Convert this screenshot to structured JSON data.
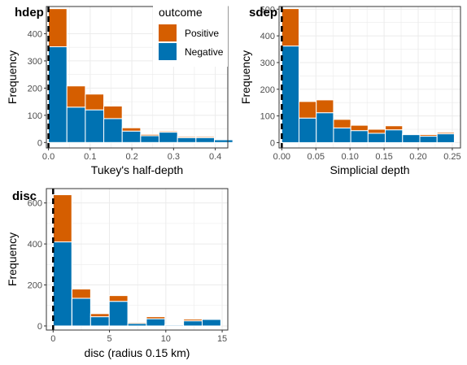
{
  "colors": {
    "positive": "#D55E00",
    "negative": "#0072B2",
    "grid": "#ebebeb",
    "border": "#333333"
  },
  "legend": {
    "title": "outcome",
    "items": [
      {
        "label": "Positive",
        "color": "#D55E00"
      },
      {
        "label": "Negative",
        "color": "#0072B2"
      }
    ]
  },
  "chart_data": [
    {
      "id": "hdep",
      "type": "bar",
      "stacked": true,
      "title": "hdep",
      "xlabel": "Tukey's half-depth",
      "ylabel": "Frequency",
      "xlim": [
        -0.005,
        0.43
      ],
      "ylim": [
        -20,
        500
      ],
      "xticks": [
        0.0,
        0.1,
        0.2,
        0.3,
        0.4
      ],
      "xtick_labels": [
        "0.0",
        "0.1",
        "0.2",
        "0.3",
        "0.4"
      ],
      "yticks": [
        0,
        100,
        200,
        300,
        400
      ],
      "ytick_labels": [
        "0",
        "100",
        "200",
        "300",
        "400"
      ],
      "bin_width": 0.0442,
      "dashed_vline": 0.0,
      "bins": [
        0.0221,
        0.0663,
        0.1105,
        0.1547,
        0.1989,
        0.2431,
        0.2873,
        0.3315,
        0.3757,
        0.4199
      ],
      "series": [
        {
          "name": "Negative",
          "values": [
            352,
            130,
            120,
            88,
            42,
            25,
            38,
            18,
            18,
            10
          ]
        },
        {
          "name": "Positive",
          "values": [
            140,
            78,
            58,
            46,
            12,
            5,
            4,
            4,
            4,
            3
          ]
        }
      ],
      "grid": true
    },
    {
      "id": "sdep",
      "type": "bar",
      "stacked": true,
      "title": "sdep",
      "xlabel": "Simplicial depth",
      "ylabel": "Frequency",
      "xlim": [
        -0.004,
        0.262
      ],
      "ylim": [
        -20,
        510
      ],
      "xticks": [
        0.0,
        0.05,
        0.1,
        0.15,
        0.2,
        0.25
      ],
      "xtick_labels": [
        "0.00",
        "0.05",
        "0.10",
        "0.15",
        "0.20",
        "0.25"
      ],
      "yticks": [
        0,
        100,
        200,
        300,
        400,
        500
      ],
      "ytick_labels": [
        "0",
        "100",
        "200",
        "300",
        "400",
        "500"
      ],
      "bin_width": 0.0253,
      "dashed_vline": 0.0,
      "bins": [
        0.0126,
        0.0379,
        0.0632,
        0.0885,
        0.1138,
        0.1391,
        0.1644,
        0.1897,
        0.215,
        0.2403
      ],
      "series": [
        {
          "name": "Negative",
          "values": [
            362,
            92,
            112,
            55,
            45,
            35,
            48,
            30,
            24,
            33
          ]
        },
        {
          "name": "Positive",
          "values": [
            140,
            62,
            48,
            32,
            20,
            15,
            15,
            3,
            6,
            5
          ]
        }
      ],
      "grid": true
    },
    {
      "id": "disc",
      "type": "bar",
      "stacked": true,
      "title": "disc",
      "xlabel": "disc (radius 0.15 km)",
      "ylabel": "Frequency",
      "xlim": [
        -0.6,
        15.5
      ],
      "ylim": [
        -20,
        670
      ],
      "xticks": [
        0,
        5,
        10,
        15
      ],
      "xtick_labels": [
        "0",
        "5",
        "10",
        "15"
      ],
      "yticks": [
        0,
        200,
        400,
        600
      ],
      "ytick_labels": [
        "0",
        "200",
        "400",
        "600"
      ],
      "bin_width": 1.65,
      "dashed_vline": 0.0,
      "bins": [
        0.83,
        2.5,
        4.15,
        5.8,
        7.45,
        9.1,
        10.75,
        12.4,
        14.05
      ],
      "series": [
        {
          "name": "Negative",
          "values": [
            410,
            135,
            45,
            120,
            12,
            35,
            5,
            25,
            32
          ]
        },
        {
          "name": "Positive",
          "values": [
            230,
            45,
            15,
            28,
            5,
            10,
            2,
            8,
            3
          ]
        }
      ],
      "grid": true
    }
  ]
}
